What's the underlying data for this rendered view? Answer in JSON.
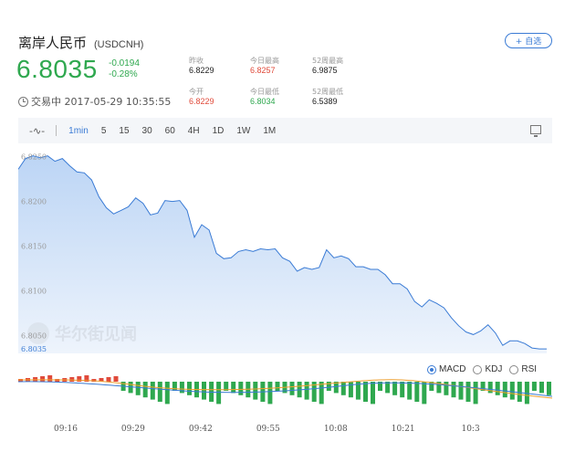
{
  "header": {
    "name": "离岸人民币",
    "code": "(USDCNH)",
    "watch_label": "+ 自选"
  },
  "quote": {
    "price": "6.8035",
    "change": "-0.0194",
    "change_pct": "-0.28%",
    "status": "交易中 2017-05-29 10:35:55"
  },
  "stats": {
    "prev_close": {
      "label": "昨收",
      "value": "6.8229"
    },
    "open": {
      "label": "今开",
      "value": "6.8229"
    },
    "high": {
      "label": "今日最高",
      "value": "6.8257"
    },
    "low": {
      "label": "今日最低",
      "value": "6.8034"
    },
    "w52_high": {
      "label": "52周最高",
      "value": "6.9875"
    },
    "w52_low": {
      "label": "52周最低",
      "value": "6.5389"
    }
  },
  "toolbar": {
    "intervals": [
      "1min",
      "5",
      "15",
      "30",
      "60",
      "4H",
      "1D",
      "1W",
      "1M"
    ],
    "active": "1min"
  },
  "watermark": "华尔街见闻",
  "indicators": [
    "MACD",
    "KDJ",
    "RSI"
  ],
  "active_indicator": "MACD",
  "colors": {
    "up": "#e04a3a",
    "down": "#2fa84f",
    "accent": "#3a7bd5"
  },
  "chart_data": {
    "type": "area",
    "y_ticks": [
      "6.8250",
      "6.8200",
      "6.8150",
      "6.8100",
      "6.8050"
    ],
    "ylim": [
      6.803,
      6.8265
    ],
    "last_label": "6.8035",
    "x_ticks": [
      "09:16",
      "09:29",
      "09:42",
      "09:55",
      "10:08",
      "10:21",
      "10:3"
    ],
    "xlim": [
      0,
      80
    ],
    "series": [
      {
        "values": [
          6.8236,
          6.8248,
          6.8251,
          6.8249,
          6.8251,
          6.8245,
          6.8248,
          6.824,
          6.8233,
          6.8232,
          6.8224,
          6.8205,
          6.8193,
          6.8186,
          6.819,
          6.8194,
          6.8204,
          6.8198,
          6.8185,
          6.8187,
          6.8201,
          6.82,
          6.8201,
          6.819,
          6.816,
          6.8174,
          6.8168,
          6.8142,
          6.8136,
          6.8137,
          6.8144,
          6.8146,
          6.8144,
          6.8147,
          6.8146,
          6.8147,
          6.8137,
          6.8133,
          6.8122,
          6.8126,
          6.8124,
          6.8126,
          6.8146,
          6.8137,
          6.8139,
          6.8136,
          6.8127,
          6.8127,
          6.8124,
          6.8124,
          6.8118,
          6.8108,
          6.8108,
          6.8102,
          6.8088,
          6.8082,
          6.809,
          6.8086,
          6.8081,
          6.807,
          6.8061,
          6.8054,
          6.8051,
          6.8055,
          6.8062,
          6.8053,
          6.8039,
          6.8044,
          6.8044,
          6.8041,
          6.8036,
          6.8035,
          6.8035
        ]
      }
    ]
  }
}
